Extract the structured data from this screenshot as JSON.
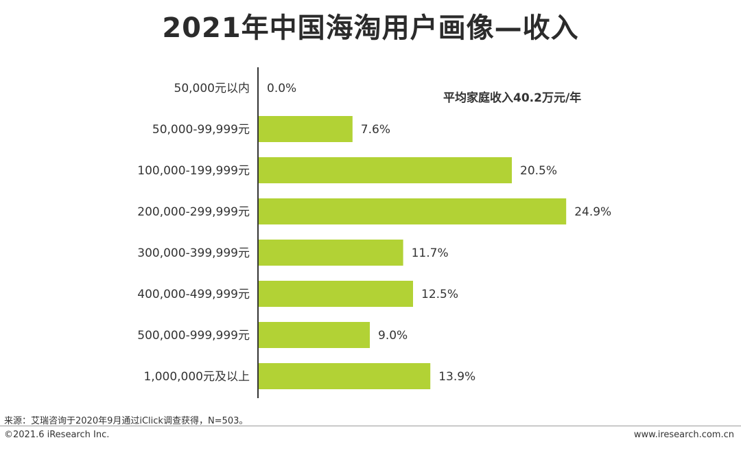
{
  "chart_data": {
    "type": "bar",
    "orientation": "horizontal",
    "title": "2021年中国海淘用户画像—收入",
    "categories": [
      "50,000元以内",
      "50,000-99,999元",
      "100,000-199,999元",
      "200,000-299,999元",
      "300,000-399,999元",
      "400,000-499,999元",
      "500,000-999,999元",
      "1,000,000元及以上"
    ],
    "values": [
      0.0,
      7.6,
      20.5,
      24.9,
      11.7,
      12.5,
      9.0,
      13.9
    ],
    "value_labels": [
      "0.0%",
      "7.6%",
      "20.5%",
      "24.9%",
      "11.7%",
      "12.5%",
      "9.0%",
      "13.9%"
    ],
    "unit": "%",
    "xlim": [
      0,
      30
    ],
    "grid": false,
    "bar_color": "#b2d235",
    "annotation": "平均家庭收入40.2万元/年"
  },
  "source": "来源：艾瑞咨询于2020年9月通过iClick调查获得，N=503。",
  "footer": {
    "copyright": "©2021.6 iResearch Inc.",
    "website": "www.iresearch.com.cn"
  }
}
